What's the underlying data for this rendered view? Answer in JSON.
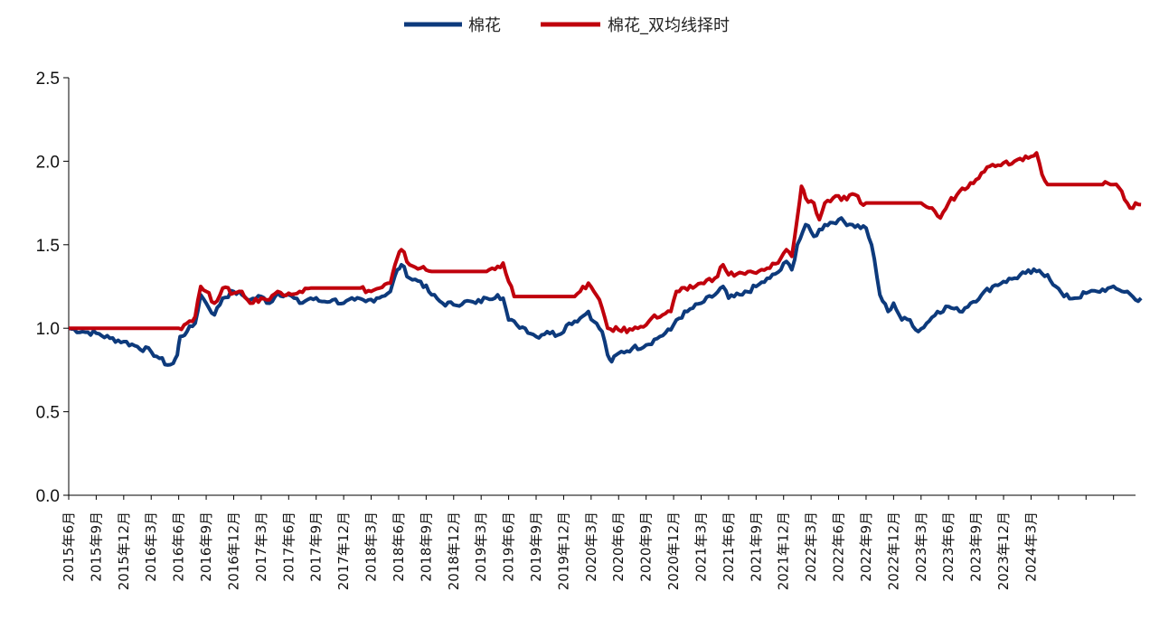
{
  "chart_data": {
    "type": "line",
    "title": "",
    "xlabel": "",
    "ylabel": "",
    "ylim": [
      0,
      2.5
    ],
    "yticks": [
      "0.0",
      "0.5",
      "1.0",
      "1.5",
      "2.0",
      "2.5"
    ],
    "x_tick_labels": [
      "2015年6月",
      "2015年9月",
      "2015年12月",
      "2016年3月",
      "2016年6月",
      "2016年9月",
      "2016年12月",
      "2017年3月",
      "2017年6月",
      "2017年9月",
      "2017年12月",
      "2018年3月",
      "2018年6月",
      "2018年9月",
      "2018年12月",
      "2019年3月",
      "2019年6月",
      "2019年9月",
      "2019年12月",
      "2020年3月",
      "2020年6月",
      "2020年9月",
      "2020年12月",
      "2021年3月",
      "2021年6月",
      "2021年9月",
      "2021年12月",
      "2022年3月",
      "2022年6月",
      "2022年9月",
      "2022年12月",
      "2023年3月",
      "2023年6月",
      "2023年9月",
      "2023年12月",
      "2024年3月"
    ],
    "legend_position": "top-center",
    "series": [
      {
        "name": "棉花",
        "color": "#0d3a7c",
        "points": [
          [
            0,
            1.0
          ],
          [
            0.5,
            0.98
          ],
          [
            1,
            0.97
          ],
          [
            1.5,
            0.94
          ],
          [
            2,
            0.92
          ],
          [
            2.5,
            0.89
          ],
          [
            3,
            0.86
          ],
          [
            3.3,
            0.82
          ],
          [
            3.6,
            0.78
          ],
          [
            3.8,
            0.79
          ],
          [
            3.95,
            0.84
          ],
          [
            4.05,
            0.95
          ],
          [
            4.3,
            0.98
          ],
          [
            4.6,
            1.03
          ],
          [
            4.8,
            1.2
          ],
          [
            5,
            1.15
          ],
          [
            5.3,
            1.08
          ],
          [
            5.6,
            1.18
          ],
          [
            6,
            1.22
          ],
          [
            6.3,
            1.2
          ],
          [
            6.6,
            1.17
          ],
          [
            7,
            1.19
          ],
          [
            7.3,
            1.15
          ],
          [
            7.6,
            1.21
          ],
          [
            8,
            1.2
          ],
          [
            8.4,
            1.15
          ],
          [
            8.8,
            1.18
          ],
          [
            9.2,
            1.16
          ],
          [
            9.6,
            1.17
          ],
          [
            10,
            1.15
          ],
          [
            10.4,
            1.17
          ],
          [
            10.8,
            1.16
          ],
          [
            11.2,
            1.18
          ],
          [
            11.7,
            1.22
          ],
          [
            11.95,
            1.35
          ],
          [
            12.1,
            1.38
          ],
          [
            12.4,
            1.3
          ],
          [
            12.8,
            1.28
          ],
          [
            13.2,
            1.2
          ],
          [
            13.6,
            1.15
          ],
          [
            14,
            1.14
          ],
          [
            14.4,
            1.16
          ],
          [
            14.8,
            1.15
          ],
          [
            15.2,
            1.18
          ],
          [
            15.6,
            1.2
          ],
          [
            15.8,
            1.18
          ],
          [
            16,
            1.05
          ],
          [
            16.3,
            1.02
          ],
          [
            16.6,
            1.0
          ],
          [
            17,
            0.95
          ],
          [
            17.4,
            0.98
          ],
          [
            17.8,
            0.96
          ],
          [
            18.2,
            1.03
          ],
          [
            18.6,
            1.06
          ],
          [
            18.9,
            1.1
          ],
          [
            19.1,
            1.04
          ],
          [
            19.4,
            0.98
          ],
          [
            19.6,
            0.84
          ],
          [
            19.75,
            0.8
          ],
          [
            20,
            0.85
          ],
          [
            20.5,
            0.88
          ],
          [
            21,
            0.9
          ],
          [
            21.5,
            0.95
          ],
          [
            21.9,
            0.99
          ],
          [
            22.1,
            1.05
          ],
          [
            22.5,
            1.1
          ],
          [
            23,
            1.15
          ],
          [
            23.5,
            1.2
          ],
          [
            23.8,
            1.25
          ],
          [
            24,
            1.18
          ],
          [
            24.5,
            1.2
          ],
          [
            25,
            1.25
          ],
          [
            25.5,
            1.3
          ],
          [
            25.9,
            1.35
          ],
          [
            26.1,
            1.4
          ],
          [
            26.3,
            1.35
          ],
          [
            26.5,
            1.5
          ],
          [
            26.8,
            1.62
          ],
          [
            27.1,
            1.55
          ],
          [
            27.5,
            1.62
          ],
          [
            28,
            1.65
          ],
          [
            28.5,
            1.62
          ],
          [
            29,
            1.6
          ],
          [
            29.2,
            1.5
          ],
          [
            29.5,
            1.2
          ],
          [
            29.8,
            1.1
          ],
          [
            30,
            1.15
          ],
          [
            30.3,
            1.05
          ],
          [
            30.6,
            1.05
          ],
          [
            30.9,
            0.98
          ],
          [
            31.2,
            1.03
          ],
          [
            31.6,
            1.1
          ],
          [
            32,
            1.13
          ],
          [
            32.4,
            1.1
          ],
          [
            32.8,
            1.15
          ],
          [
            33.2,
            1.2
          ],
          [
            33.6,
            1.25
          ],
          [
            34,
            1.28
          ],
          [
            34.4,
            1.3
          ],
          [
            34.8,
            1.33
          ],
          [
            35.2,
            1.34
          ],
          [
            35.6,
            1.32
          ],
          [
            35.9,
            1.25
          ],
          [
            36.2,
            1.19
          ],
          [
            36.6,
            1.18
          ],
          [
            37,
            1.21
          ],
          [
            37.4,
            1.22
          ],
          [
            37.8,
            1.24
          ],
          [
            38.2,
            1.23
          ],
          [
            38.5,
            1.22
          ],
          [
            38.8,
            1.17
          ],
          [
            39,
            1.18
          ]
        ]
      },
      {
        "name": "棉花_双均线择时",
        "color": "#c0000c",
        "points": [
          [
            0,
            1.0
          ],
          [
            4.0,
            1.0
          ],
          [
            4.2,
            1.02
          ],
          [
            4.6,
            1.07
          ],
          [
            4.8,
            1.25
          ],
          [
            5,
            1.22
          ],
          [
            5.3,
            1.15
          ],
          [
            5.6,
            1.24
          ],
          [
            6,
            1.21
          ],
          [
            6.3,
            1.22
          ],
          [
            6.6,
            1.15
          ],
          [
            7,
            1.18
          ],
          [
            7.3,
            1.17
          ],
          [
            7.6,
            1.22
          ],
          [
            8,
            1.21
          ],
          [
            8.4,
            1.22
          ],
          [
            8.8,
            1.24
          ],
          [
            10.6,
            1.24
          ],
          [
            11,
            1.22
          ],
          [
            11.3,
            1.24
          ],
          [
            11.7,
            1.27
          ],
          [
            11.95,
            1.42
          ],
          [
            12.1,
            1.47
          ],
          [
            12.4,
            1.38
          ],
          [
            12.8,
            1.36
          ],
          [
            13.2,
            1.34
          ],
          [
            15.2,
            1.34
          ],
          [
            15.6,
            1.37
          ],
          [
            15.8,
            1.39
          ],
          [
            16,
            1.28
          ],
          [
            16.2,
            1.19
          ],
          [
            18.4,
            1.19
          ],
          [
            18.6,
            1.22
          ],
          [
            18.9,
            1.27
          ],
          [
            19.1,
            1.22
          ],
          [
            19.4,
            1.12
          ],
          [
            19.6,
            1.0
          ],
          [
            20,
            0.99
          ],
          [
            20.5,
            0.99
          ],
          [
            20.8,
            1.01
          ],
          [
            21.2,
            1.06
          ],
          [
            21.6,
            1.08
          ],
          [
            21.9,
            1.1
          ],
          [
            22.1,
            1.22
          ],
          [
            22.5,
            1.23
          ],
          [
            23,
            1.27
          ],
          [
            23.5,
            1.3
          ],
          [
            23.8,
            1.38
          ],
          [
            24,
            1.32
          ],
          [
            24.5,
            1.33
          ],
          [
            25,
            1.33
          ],
          [
            25.5,
            1.36
          ],
          [
            25.9,
            1.42
          ],
          [
            26.1,
            1.47
          ],
          [
            26.3,
            1.43
          ],
          [
            26.5,
            1.66
          ],
          [
            26.65,
            1.85
          ],
          [
            26.8,
            1.78
          ],
          [
            27.1,
            1.75
          ],
          [
            27.3,
            1.65
          ],
          [
            27.5,
            1.75
          ],
          [
            27.8,
            1.78
          ],
          [
            28.3,
            1.77
          ],
          [
            28.6,
            1.8
          ],
          [
            28.8,
            1.75
          ],
          [
            29,
            1.75
          ],
          [
            31.0,
            1.75
          ],
          [
            31.3,
            1.72
          ],
          [
            31.5,
            1.7
          ],
          [
            31.7,
            1.66
          ],
          [
            32,
            1.75
          ],
          [
            32.4,
            1.82
          ],
          [
            32.8,
            1.87
          ],
          [
            33.2,
            1.93
          ],
          [
            33.6,
            1.98
          ],
          [
            34,
            1.99
          ],
          [
            34.4,
            2.0
          ],
          [
            34.8,
            2.03
          ],
          [
            35.2,
            2.05
          ],
          [
            35.4,
            1.92
          ],
          [
            35.6,
            1.86
          ],
          [
            37.6,
            1.86
          ],
          [
            38.0,
            1.86
          ],
          [
            38.3,
            1.82
          ],
          [
            38.6,
            1.72
          ],
          [
            38.8,
            1.75
          ],
          [
            39,
            1.74
          ]
        ]
      }
    ]
  },
  "legend": {
    "series_1": "棉花",
    "series_2": "棉花_双均线择时"
  }
}
